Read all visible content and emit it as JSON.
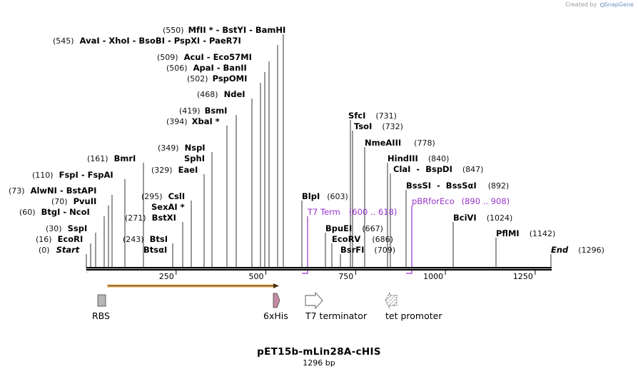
{
  "credit": {
    "text": "Created by",
    "brand": "SnapGene"
  },
  "plasmid": {
    "name": "pET15b-mLin28A-cHIS",
    "length_label": "1296 bp",
    "length": 1296
  },
  "axis": {
    "ticks": [
      {
        "pos": 250,
        "label": "250"
      },
      {
        "pos": 500,
        "label": "500"
      },
      {
        "pos": 750,
        "label": "750"
      },
      {
        "pos": 1000,
        "label": "1000"
      },
      {
        "pos": 1250,
        "label": "1250"
      }
    ]
  },
  "sites_left": [
    {
      "num": "(550)",
      "parts": [
        "MfII *",
        "BstYI",
        "BamHI"
      ]
    },
    {
      "num": "(545)",
      "parts": [
        "AvaI",
        "XhoI",
        "BsoBI",
        "PspXI",
        "PaeR7I"
      ]
    },
    {
      "num": "(509)",
      "parts": [
        "AcuI",
        "Eco57MI"
      ]
    },
    {
      "num": "(506)",
      "parts": [
        "ApaI",
        "BanII"
      ]
    },
    {
      "num": "(502)",
      "parts": [
        "PspOMI"
      ]
    },
    {
      "num": "(468)",
      "parts": [
        "NdeI"
      ]
    },
    {
      "num": "(419)",
      "parts": [
        "BsmI"
      ]
    },
    {
      "num": "(394)",
      "parts": [
        "XbaI *"
      ]
    },
    {
      "num": "(349)",
      "parts": [
        "NspI"
      ]
    },
    {
      "num": "",
      "parts": [
        "SphI"
      ]
    },
    {
      "num": "(329)",
      "parts": [
        "EaeI"
      ]
    },
    {
      "num": "(161)",
      "parts": [
        "BmrI"
      ]
    },
    {
      "num": "(110)",
      "parts": [
        "FspI",
        "FspAI"
      ]
    },
    {
      "num": "(295)",
      "parts": [
        "CslI"
      ]
    },
    {
      "num": "",
      "parts": [
        "SexAI *"
      ]
    },
    {
      "num": "(73)",
      "parts": [
        "AlwNI",
        "BstAPI"
      ]
    },
    {
      "num": "(70)",
      "parts": [
        "PvuII"
      ]
    },
    {
      "num": "(60)",
      "parts": [
        "BtgI",
        "NcoI"
      ]
    },
    {
      "num": "(271)",
      "parts": [
        "BstXI"
      ]
    },
    {
      "num": "(30)",
      "parts": [
        "SspI"
      ]
    },
    {
      "num": "(16)",
      "parts": [
        "EcoRI"
      ]
    },
    {
      "num": "(243)",
      "parts": [
        "BtsI"
      ]
    },
    {
      "num": "(0)",
      "parts": [
        "Start"
      ]
    },
    {
      "num": "",
      "parts": [
        "BtsαI"
      ]
    }
  ],
  "sites_right": [
    {
      "name": "SfcI",
      "num": "(731)"
    },
    {
      "name": "TsoI",
      "num": "(732)"
    },
    {
      "name": "NmeAIII",
      "num": "(778)"
    },
    {
      "name": "HindIII",
      "num": "(840)"
    },
    {
      "name": "ClaI  -  BspDI",
      "num": "(847)"
    },
    {
      "name": "BssSI  -  BssSαI",
      "num": "(892)"
    },
    {
      "name": "BlpI",
      "num": "(603)"
    },
    {
      "name": "BciVI",
      "num": "(1024)"
    },
    {
      "name": "BpuEI",
      "num": "(667)"
    },
    {
      "name": "PflMI",
      "num": "(1142)"
    },
    {
      "name": "EcoRV",
      "num": "(686)"
    },
    {
      "name": "BsrFI",
      "num": "(709)"
    },
    {
      "name": "End",
      "num": "(1296)"
    }
  ],
  "primers": [
    {
      "name": "T7 Term",
      "range": "(600 .. 618)",
      "start": 600,
      "end": 618,
      "direction": "reverse"
    },
    {
      "name": "pBRforEco",
      "range": "(890 .. 908)",
      "start": 890,
      "end": 908,
      "direction": "reverse"
    }
  ],
  "features": [
    {
      "name": "RBS",
      "kind": "rbs"
    },
    {
      "name": "6xHis",
      "kind": "tag"
    },
    {
      "name": "T7 terminator",
      "kind": "terminator"
    },
    {
      "name": "tet promoter",
      "kind": "promoter"
    }
  ],
  "colors": {
    "orf": "#f2a93b",
    "his": "#c48aa6",
    "rbs": "#b6b6b6",
    "primer": "#9933cc"
  }
}
